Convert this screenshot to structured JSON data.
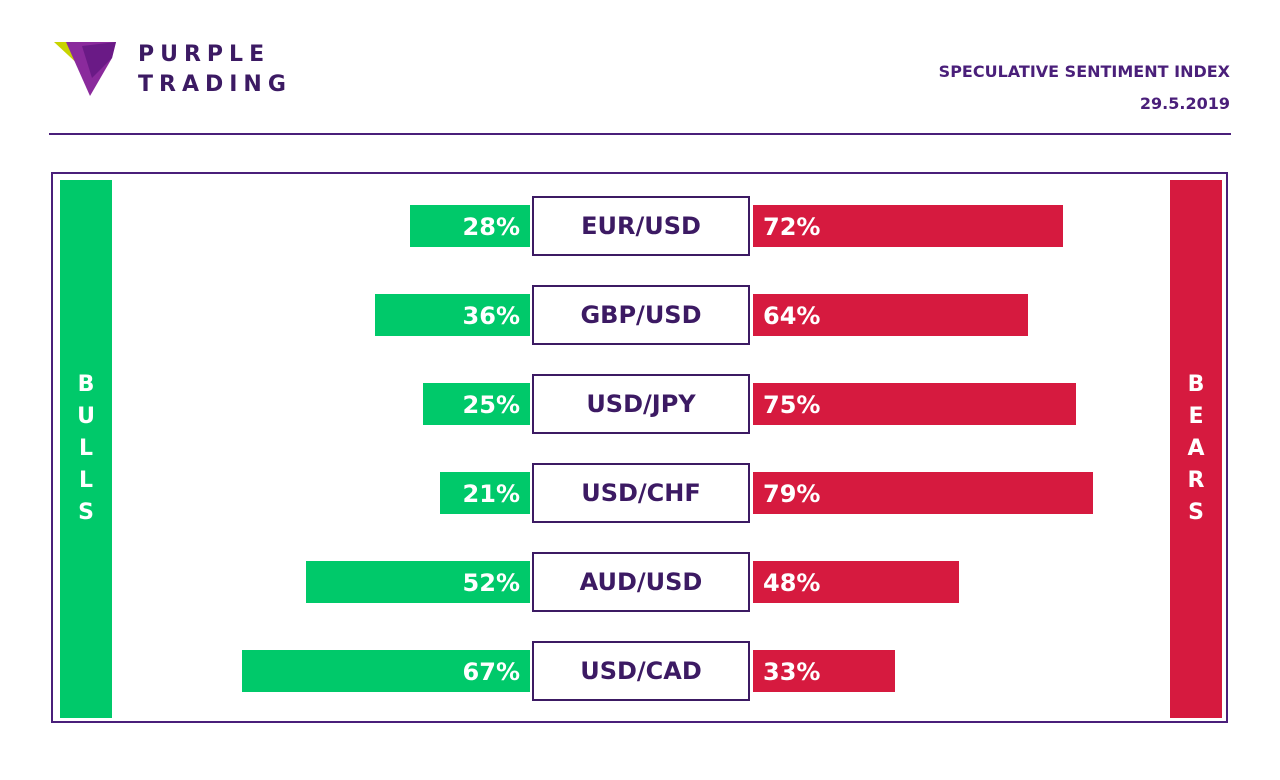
{
  "brand": {
    "line1": "PURPLE",
    "line2": "TRADING"
  },
  "header": {
    "title": "SPECULATIVE SENTIMENT INDEX",
    "date": "29.5.2019"
  },
  "labels": {
    "bulls": "BULLS",
    "bears": "BEARS"
  },
  "colors": {
    "bulls": "#00c96a",
    "bears": "#d61a3f",
    "brand": "#4a1f7a"
  },
  "chart_data": {
    "type": "bar",
    "categories": [
      "EUR/USD",
      "GBP/USD",
      "USD/JPY",
      "USD/CHF",
      "AUD/USD",
      "USD/CAD"
    ],
    "series": [
      {
        "name": "BULLS",
        "values": [
          28,
          36,
          25,
          21,
          52,
          67
        ],
        "labels": [
          "28%",
          "36%",
          "25%",
          "21%",
          "52%",
          "67%"
        ]
      },
      {
        "name": "BEARS",
        "values": [
          72,
          64,
          75,
          79,
          48,
          33
        ],
        "labels": [
          "72%",
          "64%",
          "75%",
          "79%",
          "48%",
          "33%"
        ]
      }
    ]
  }
}
